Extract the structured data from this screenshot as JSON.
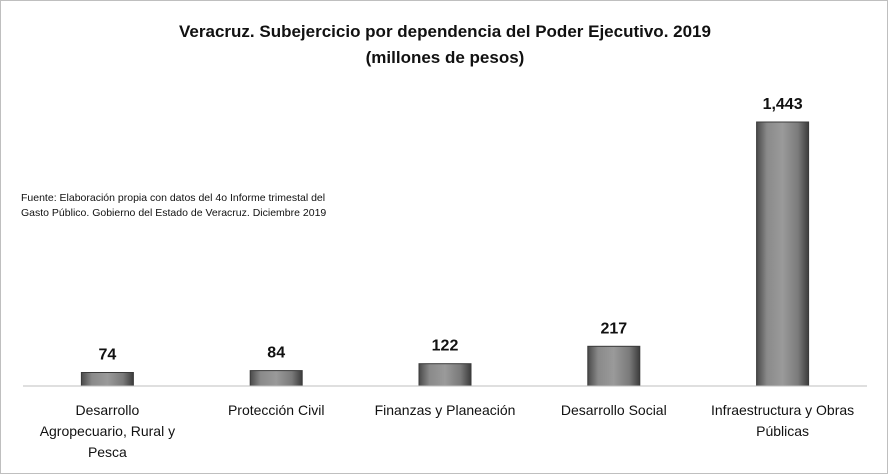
{
  "chart_data": {
    "type": "bar",
    "title_lines": [
      "Veracruz. Subejercicio por dependencia del Poder Ejecutivo. 2019",
      "(millones de pesos)"
    ],
    "note_lines": [
      "Fuente: Elaboración propia con datos del 4o Informe trimestal del",
      "Gasto Público. Gobierno del Estado de Veracruz. Diciembre 2019"
    ],
    "categories": [
      "Desarrollo Agropecuario, Rural y Pesca",
      "Protección Civil",
      "Finanzas y Planeación",
      "Desarrollo Social",
      "Infraestructura y Obras Públicas"
    ],
    "category_label_lines": [
      [
        "Desarrollo",
        "Agropecuario, Rural y",
        "Pesca"
      ],
      [
        "Protección Civil"
      ],
      [
        "Finanzas y Planeación"
      ],
      [
        "Desarrollo Social"
      ],
      [
        "Infraestructura y Obras",
        "Públicas"
      ]
    ],
    "values": [
      74,
      84,
      122,
      217,
      1443
    ],
    "value_labels": [
      "74",
      "84",
      "122",
      "217",
      "1,443"
    ],
    "xlabel": "",
    "ylabel": "",
    "ylim": [
      0,
      1443
    ],
    "grid": false,
    "legend": "none",
    "bar_color": "#7f7f7f",
    "bar_edge_color": "#3a3a3a",
    "axis_color": "#bfbfbf"
  }
}
